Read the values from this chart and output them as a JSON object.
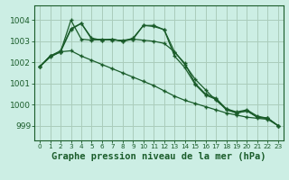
{
  "background_color": "#cceee4",
  "grid_color": "#aaccbb",
  "line_color": "#1a5c2a",
  "xlabel": "Graphe pression niveau de la mer (hPa)",
  "xlabel_fontsize": 7.5,
  "tick_fontsize": 6.5,
  "yticks": [
    999,
    1000,
    1001,
    1002,
    1003,
    1004
  ],
  "ylim": [
    998.3,
    1004.7
  ],
  "xlim": [
    -0.5,
    23.5
  ],
  "series": [
    {
      "x": [
        0,
        1,
        2,
        3,
        4,
        5,
        6,
        7,
        8,
        9,
        10,
        11,
        12,
        13,
        14,
        15,
        16,
        17,
        18,
        19,
        20,
        21,
        22,
        23
      ],
      "y": [
        1001.8,
        1002.3,
        1002.5,
        1003.55,
        1003.85,
        1003.15,
        1003.05,
        1003.1,
        1003.0,
        1003.15,
        1003.75,
        1003.7,
        1003.55,
        1002.5,
        1001.95,
        1001.0,
        1000.5,
        1000.3,
        999.8,
        999.65,
        999.75,
        999.45,
        999.35,
        999.0
      ]
    },
    {
      "x": [
        0,
        1,
        2,
        3,
        4,
        5,
        6,
        7,
        8,
        9,
        10,
        11,
        12,
        13,
        14,
        15,
        16,
        17,
        18,
        19,
        20,
        21,
        22,
        23
      ],
      "y": [
        1001.8,
        1002.3,
        1002.55,
        1003.6,
        1003.85,
        1003.1,
        1003.05,
        1003.1,
        1003.0,
        1003.1,
        1003.75,
        1003.75,
        1003.55,
        1002.3,
        1001.75,
        1000.95,
        1000.45,
        1000.25,
        999.75,
        999.6,
        999.7,
        999.4,
        999.35,
        999.0
      ]
    },
    {
      "x": [
        0,
        1,
        2,
        3,
        4,
        5,
        6,
        7,
        8,
        9,
        10,
        11,
        12,
        13,
        14,
        15,
        16,
        17,
        18,
        19,
        20,
        21,
        22,
        23
      ],
      "y": [
        1001.8,
        1002.25,
        1002.5,
        1004.0,
        1003.1,
        1003.05,
        1003.1,
        1003.05,
        1003.05,
        1003.1,
        1003.05,
        1003.0,
        1002.9,
        1002.5,
        1001.9,
        1001.2,
        1000.7,
        1000.2,
        999.8,
        999.6,
        999.7,
        999.4,
        999.35,
        999.0
      ]
    },
    {
      "x": [
        0,
        1,
        2,
        3,
        4,
        5,
        6,
        7,
        8,
        9,
        10,
        11,
        12,
        13,
        14,
        15,
        16,
        17,
        18,
        19,
        20,
        21,
        22,
        23
      ],
      "y": [
        1001.8,
        1002.3,
        1002.5,
        1002.55,
        1002.3,
        1002.1,
        1001.9,
        1001.7,
        1001.5,
        1001.3,
        1001.1,
        1000.9,
        1000.65,
        1000.4,
        1000.2,
        1000.05,
        999.9,
        999.75,
        999.6,
        999.5,
        999.4,
        999.35,
        999.3,
        999.0
      ]
    }
  ]
}
